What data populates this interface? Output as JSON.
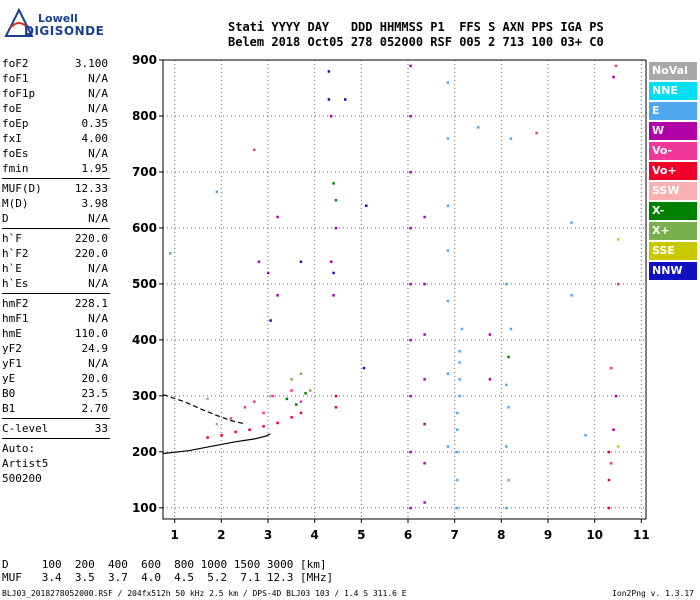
{
  "logo": {
    "line1": "Lowell",
    "line2": "DIGISONDE"
  },
  "header": {
    "line1": "Stati YYYY DAY   DDD HHMMSS P1  FFS S AXN PPS IGA PS",
    "line2": "Belem 2018 Oct05 278 052000 RSF 005 2 713 100 03+ C0"
  },
  "params": [
    {
      "name": "foF2",
      "value": "3.100"
    },
    {
      "name": "foF1",
      "value": "N/A"
    },
    {
      "name": "foF1p",
      "value": "N/A"
    },
    {
      "name": "foE",
      "value": "N/A"
    },
    {
      "name": "foEp",
      "value": "0.35"
    },
    {
      "name": "fxI",
      "value": "4.00"
    },
    {
      "name": "foEs",
      "value": "N/A"
    },
    {
      "name": "fmin",
      "value": "1.95"
    },
    {
      "sep": true
    },
    {
      "name": "MUF(D)",
      "value": "12.33"
    },
    {
      "name": "M(D)",
      "value": "3.98"
    },
    {
      "name": "D",
      "value": "N/A"
    },
    {
      "sep": true
    },
    {
      "name": "h`F",
      "value": "220.0"
    },
    {
      "name": "h`F2",
      "value": "220.0"
    },
    {
      "name": "h`E",
      "value": "N/A"
    },
    {
      "name": "h`Es",
      "value": "N/A"
    },
    {
      "sep": true
    },
    {
      "name": "hmF2",
      "value": "228.1"
    },
    {
      "name": "hmF1",
      "value": "N/A"
    },
    {
      "name": "hmE",
      "value": "110.0"
    },
    {
      "name": "yF2",
      "value": "24.9"
    },
    {
      "name": "yF1",
      "value": "N/A"
    },
    {
      "name": "yE",
      "value": "20.0"
    },
    {
      "name": "B0",
      "value": "23.5"
    },
    {
      "name": "B1",
      "value": "2.70"
    },
    {
      "sep": true
    },
    {
      "name": "C-level",
      "value": "33"
    },
    {
      "sep": true
    },
    {
      "name": "Auto:",
      "value": ""
    },
    {
      "name": "Artist5",
      "value": ""
    },
    {
      "name": "500200",
      "value": ""
    }
  ],
  "legend": [
    {
      "label": "NoVal",
      "color": "#a8a8a8"
    },
    {
      "label": "NNE",
      "color": "#00e0f0"
    },
    {
      "label": "E",
      "color": "#50a8f0"
    },
    {
      "label": "W",
      "color": "#b000a8"
    },
    {
      "label": "Vo-",
      "color": "#f03898"
    },
    {
      "label": "Vo+",
      "color": "#f00028"
    },
    {
      "label": "SSW",
      "color": "#f8b0b0"
    },
    {
      "label": "X-",
      "color": "#008000"
    },
    {
      "label": "X+",
      "color": "#78b050"
    },
    {
      "label": "SSE",
      "color": "#c8c800"
    },
    {
      "label": "NNW",
      "color": "#1010c0"
    }
  ],
  "bottom": {
    "d_row": "D     100  200  400  600  800 1000 1500 3000 [km]",
    "muf_row": "MUF   3.4  3.5  3.7  4.0  4.5  5.2  7.1 12.3 [MHz]"
  },
  "footer": {
    "left": "BLJ03_2018278052000.RSF / 204fx512h 50 kHz 2.5 km / DPS-4D BLJ03 103 / 1.4 S 311.6 E",
    "right": "Ion2Png v. 1.3.17"
  },
  "chart_data": {
    "type": "scatter",
    "title": "",
    "xlabel": "",
    "ylabel": "",
    "xlim": [
      0.75,
      11.1
    ],
    "ylim": [
      80,
      900
    ],
    "xticks": [
      1,
      2,
      3,
      4,
      5,
      6,
      7,
      8,
      9,
      10,
      11
    ],
    "yticks": [
      100,
      200,
      300,
      400,
      500,
      600,
      700,
      800,
      900
    ],
    "grid": true,
    "legend_position": "right",
    "series": [
      {
        "legend_index": 2,
        "points": [
          [
            6.85,
            210
          ],
          [
            6.85,
            340
          ],
          [
            6.85,
            470
          ],
          [
            6.85,
            560
          ],
          [
            6.85,
            640
          ],
          [
            6.85,
            760
          ],
          [
            6.85,
            860
          ],
          [
            7.05,
            100
          ],
          [
            7.05,
            150
          ],
          [
            7.05,
            200
          ],
          [
            7.05,
            240
          ],
          [
            7.05,
            270
          ],
          [
            7.1,
            300
          ],
          [
            7.1,
            330
          ],
          [
            7.1,
            360
          ],
          [
            7.1,
            380
          ],
          [
            7.15,
            420
          ],
          [
            8.1,
            100
          ],
          [
            8.15,
            150
          ],
          [
            8.1,
            210
          ],
          [
            8.15,
            280
          ],
          [
            8.1,
            320
          ],
          [
            8.2,
            420
          ],
          [
            8.1,
            500
          ],
          [
            8.2,
            760
          ],
          [
            0.9,
            555
          ],
          [
            1.9,
            665
          ],
          [
            7.5,
            780
          ],
          [
            9.5,
            610
          ],
          [
            9.5,
            480
          ],
          [
            9.8,
            230
          ]
        ]
      },
      {
        "legend_index": 3,
        "points": [
          [
            6.05,
            100
          ],
          [
            6.05,
            200
          ],
          [
            6.05,
            300
          ],
          [
            6.05,
            400
          ],
          [
            6.05,
            500
          ],
          [
            6.05,
            600
          ],
          [
            6.05,
            700
          ],
          [
            6.05,
            800
          ],
          [
            6.05,
            890
          ],
          [
            6.35,
            110
          ],
          [
            6.35,
            180
          ],
          [
            6.35,
            250
          ],
          [
            6.35,
            330
          ],
          [
            6.35,
            410
          ],
          [
            6.35,
            500
          ],
          [
            6.35,
            620
          ],
          [
            4.35,
            540
          ],
          [
            4.4,
            480
          ],
          [
            4.45,
            600
          ],
          [
            4.35,
            800
          ],
          [
            10.4,
            240
          ],
          [
            10.45,
            300
          ],
          [
            10.4,
            870
          ],
          [
            7.75,
            410
          ],
          [
            7.75,
            330
          ],
          [
            2.8,
            540
          ],
          [
            3.0,
            520
          ],
          [
            3.2,
            480
          ],
          [
            3.2,
            620
          ]
        ]
      },
      {
        "legend_index": 4,
        "points": [
          [
            2.2,
            260
          ],
          [
            2.5,
            280
          ],
          [
            2.7,
            290
          ],
          [
            2.9,
            270
          ],
          [
            3.1,
            300
          ],
          [
            3.5,
            310
          ],
          [
            3.7,
            290
          ],
          [
            10.35,
            180
          ],
          [
            10.35,
            350
          ],
          [
            10.5,
            500
          ],
          [
            10.45,
            890
          ],
          [
            2.7,
            740
          ],
          [
            8.75,
            770
          ]
        ]
      },
      {
        "legend_index": 5,
        "points": [
          [
            1.7,
            226
          ],
          [
            2.0,
            230
          ],
          [
            2.3,
            236
          ],
          [
            2.6,
            240
          ],
          [
            2.9,
            246
          ],
          [
            3.2,
            252
          ],
          [
            3.5,
            262
          ],
          [
            3.7,
            270
          ],
          [
            10.3,
            100
          ],
          [
            10.3,
            200
          ],
          [
            10.3,
            150
          ],
          [
            4.45,
            280
          ],
          [
            4.45,
            300
          ]
        ]
      },
      {
        "legend_index": 7,
        "points": [
          [
            3.4,
            295
          ],
          [
            3.6,
            285
          ],
          [
            3.8,
            305
          ],
          [
            4.4,
            680
          ],
          [
            8.15,
            370
          ],
          [
            4.45,
            650
          ]
        ]
      },
      {
        "legend_index": 8,
        "points": [
          [
            3.5,
            330
          ],
          [
            3.7,
            340
          ],
          [
            3.9,
            310
          ]
        ]
      },
      {
        "legend_index": 9,
        "points": [
          [
            10.5,
            210
          ],
          [
            10.5,
            580
          ]
        ]
      },
      {
        "legend_index": 10,
        "points": [
          [
            4.3,
            830
          ],
          [
            4.3,
            880
          ],
          [
            4.65,
            830
          ],
          [
            4.4,
            520
          ],
          [
            3.05,
            435
          ],
          [
            3.7,
            540
          ],
          [
            5.1,
            640
          ],
          [
            5.05,
            350
          ]
        ]
      },
      {
        "legend_index": 0,
        "points": [
          [
            1.7,
            295
          ],
          [
            3.05,
            300
          ],
          [
            1.9,
            250
          ]
        ]
      }
    ],
    "curves": [
      {
        "style": "solid",
        "points": [
          [
            0.75,
            197
          ],
          [
            1.3,
            202
          ],
          [
            1.8,
            210
          ],
          [
            2.3,
            218
          ],
          [
            2.7,
            223
          ],
          [
            2.95,
            228
          ],
          [
            3.05,
            232
          ]
        ]
      },
      {
        "style": "dashed",
        "points": [
          [
            0.75,
            302
          ],
          [
            1.2,
            290
          ],
          [
            1.6,
            275
          ],
          [
            1.9,
            265
          ],
          [
            2.2,
            256
          ],
          [
            2.5,
            250
          ]
        ]
      }
    ]
  }
}
